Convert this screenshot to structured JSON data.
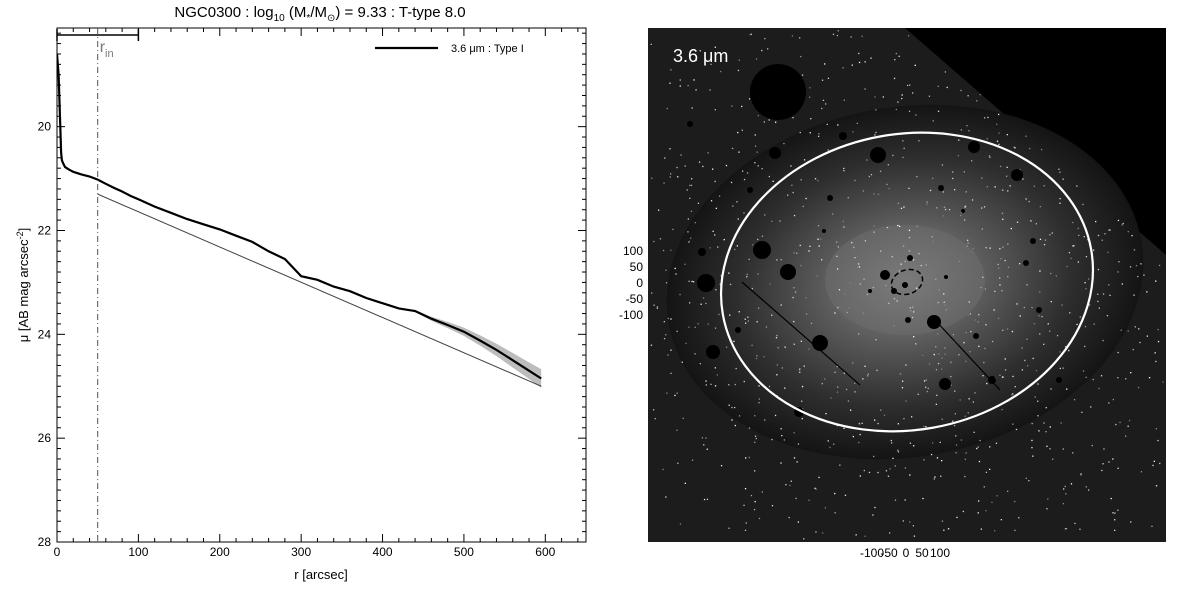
{
  "chart_data": [
    {
      "type": "line",
      "title_prefix": "NGC0300 : log",
      "title_sub": "10",
      "title_mid": " (M",
      "title_mid_sub": "*",
      "title_mid2": "/M",
      "title_mid2_sub": "⊙",
      "title_rest": ") = 9.33 : T-type 8.0",
      "xlabel": "r [arcsec]",
      "ylabel_main": "μ [AB mag arcsec",
      "ylabel_sup": "-2",
      "ylabel_end": "]",
      "xlim": [
        0,
        650
      ],
      "ylim": [
        28,
        18.1
      ],
      "y_inverted": true,
      "xticks": [
        "0",
        "100",
        "200",
        "300",
        "400",
        "500",
        "600"
      ],
      "xtick_values": [
        0,
        100,
        200,
        300,
        400,
        500,
        600
      ],
      "yticks": [
        "20",
        "22",
        "24",
        "26",
        "28"
      ],
      "ytick_values": [
        20,
        22,
        24,
        26,
        28
      ],
      "legend": {
        "label": "3.6 μm : Type I",
        "position": "top-right"
      },
      "r_in": {
        "label": "r",
        "label_sub": "in",
        "value": 50,
        "bar_range": [
          0,
          100
        ]
      },
      "series": [
        {
          "name": "3.6 μm : Type I",
          "x": [
            0,
            2,
            4,
            5,
            6,
            8,
            10,
            15,
            20,
            30,
            40,
            50,
            60,
            70,
            80,
            90,
            100,
            120,
            140,
            160,
            180,
            200,
            220,
            240,
            260,
            280,
            300,
            320,
            340,
            360,
            380,
            400,
            420,
            440,
            460,
            480,
            500,
            520,
            540,
            560,
            580,
            595
          ],
          "y": [
            18.6,
            19.0,
            20.0,
            20.5,
            20.65,
            20.72,
            20.78,
            20.83,
            20.87,
            20.92,
            20.96,
            21.02,
            21.1,
            21.18,
            21.25,
            21.33,
            21.4,
            21.54,
            21.66,
            21.78,
            21.88,
            21.98,
            22.1,
            22.22,
            22.4,
            22.55,
            22.88,
            22.95,
            23.08,
            23.17,
            23.3,
            23.4,
            23.5,
            23.55,
            23.7,
            23.82,
            23.95,
            24.12,
            24.3,
            24.5,
            24.7,
            24.85
          ],
          "band": [
            0,
            0,
            0,
            0,
            0,
            0,
            0,
            0,
            0,
            0,
            0,
            0,
            0,
            0,
            0,
            0,
            0,
            0,
            0,
            0,
            0,
            0,
            0,
            0,
            0,
            0,
            0,
            0,
            0,
            0,
            0,
            0,
            0,
            0.02,
            0.04,
            0.06,
            0.08,
            0.1,
            0.12,
            0.14,
            0.16,
            0.18
          ]
        },
        {
          "name": "",
          "x": [
            50,
            595
          ],
          "y": [
            21.3,
            25.0
          ]
        }
      ]
    },
    {
      "type": "image",
      "image_label": "3.6 μm",
      "yticks": [
        "100",
        "50",
        "0",
        "-50",
        "-100"
      ],
      "xticks": [
        "-100",
        "-50",
        "0",
        "50",
        "100"
      ]
    }
  ]
}
